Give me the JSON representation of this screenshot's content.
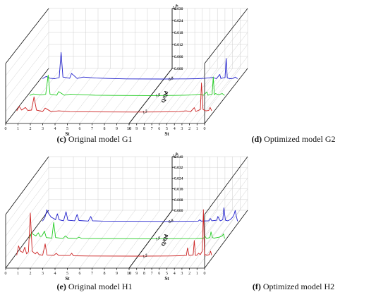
{
  "chart_data": [
    {
      "type": "line",
      "caption_label": "(c)",
      "caption_text": "Original model G1",
      "xlabel": "St",
      "zlabel": "Cp",
      "ylabel": "Q/Q_d",
      "xlim": [
        0,
        10
      ],
      "zlim": [
        0,
        0.03
      ],
      "x_ticks": [
        0,
        1,
        2,
        3,
        4,
        5,
        6,
        7,
        8,
        9,
        10
      ],
      "z_ticks": [
        "0.000",
        "0.006",
        "0.012",
        "0.018",
        "0.024",
        "0.030"
      ],
      "series": [
        {
          "name": "0.8",
          "color": "#2020cc",
          "points": [
            [
              0.2,
              0.0004
            ],
            [
              0.5,
              0.0015
            ],
            [
              0.8,
              0.0006
            ],
            [
              1.2,
              0.0004
            ],
            [
              1.55,
              0.0009
            ],
            [
              1.7,
              0.0135
            ],
            [
              1.85,
              0.0012
            ],
            [
              2.4,
              0.0006
            ],
            [
              2.55,
              0.003
            ],
            [
              3.0,
              0.0005
            ],
            [
              3.5,
              0.0012
            ],
            [
              4.5,
              0.0007
            ],
            [
              5.5,
              0.0005
            ],
            [
              7.0,
              0.0003
            ],
            [
              10.0,
              0.0002
            ]
          ]
        },
        {
          "name": "1.0",
          "color": "#22cc22",
          "points": [
            [
              0.2,
              0.0003
            ],
            [
              0.5,
              0.001
            ],
            [
              1.1,
              0.0005
            ],
            [
              1.5,
              0.0008
            ],
            [
              1.7,
              0.0105
            ],
            [
              1.85,
              0.0009
            ],
            [
              2.4,
              0.0004
            ],
            [
              2.55,
              0.0022
            ],
            [
              3.0,
              0.0004
            ],
            [
              3.5,
              0.0009
            ],
            [
              4.5,
              0.0006
            ],
            [
              5.5,
              0.0004
            ],
            [
              7.0,
              0.0003
            ],
            [
              10.0,
              0.0002
            ]
          ]
        },
        {
          "name": "1.2",
          "color": "#cc2222",
          "points": [
            [
              0.2,
              0.0008
            ],
            [
              0.4,
              0.003
            ],
            [
              0.6,
              0.0012
            ],
            [
              0.9,
              0.0025
            ],
            [
              1.1,
              0.001
            ],
            [
              1.4,
              0.0012
            ],
            [
              1.6,
              0.0078
            ],
            [
              1.8,
              0.0012
            ],
            [
              2.3,
              0.0005
            ],
            [
              2.5,
              0.0022
            ],
            [
              3.0,
              0.0004
            ],
            [
              3.6,
              0.0008
            ],
            [
              4.5,
              0.0004
            ],
            [
              6.0,
              0.0003
            ],
            [
              10.0,
              0.0002
            ]
          ]
        }
      ]
    },
    {
      "type": "line",
      "caption_label": "(d)",
      "caption_text": "Optimized model G2",
      "xlabel": "St",
      "zlabel": "Cp",
      "ylabel": "Q/Q_d",
      "xlim": [
        0,
        10
      ],
      "zlim": [
        0,
        0.03
      ],
      "x_ticks": [
        0,
        1,
        2,
        3,
        4,
        5,
        6,
        7,
        8,
        9,
        10
      ],
      "z_ticks": [
        "0.000",
        "0.006",
        "0.012",
        "0.018",
        "0.024",
        "0.030"
      ],
      "series": [
        {
          "name": "0.8",
          "color": "#2020cc",
          "points": [
            [
              0.2,
              0.0004
            ],
            [
              0.5,
              0.0012
            ],
            [
              0.8,
              0.0005
            ],
            [
              1.2,
              0.0004
            ],
            [
              1.55,
              0.0007
            ],
            [
              1.7,
              0.0105
            ],
            [
              1.85,
              0.001
            ],
            [
              2.4,
              0.0005
            ],
            [
              2.55,
              0.0025
            ],
            [
              3.0,
              0.0004
            ],
            [
              3.5,
              0.001
            ],
            [
              4.5,
              0.0006
            ],
            [
              5.5,
              0.0004
            ],
            [
              7.0,
              0.0003
            ],
            [
              10.0,
              0.0002
            ]
          ]
        },
        {
          "name": "1.0",
          "color": "#22cc22",
          "points": [
            [
              0.2,
              0.0003
            ],
            [
              0.5,
              0.0012
            ],
            [
              1.0,
              0.0006
            ],
            [
              1.4,
              0.0012
            ],
            [
              1.55,
              0.0006
            ],
            [
              1.7,
              0.0095
            ],
            [
              1.85,
              0.0009
            ],
            [
              2.4,
              0.0004
            ],
            [
              2.55,
              0.002
            ],
            [
              3.0,
              0.0004
            ],
            [
              3.5,
              0.0008
            ],
            [
              4.5,
              0.0005
            ],
            [
              5.5,
              0.0004
            ],
            [
              7.0,
              0.0003
            ],
            [
              10.0,
              0.0002
            ]
          ]
        },
        {
          "name": "1.2",
          "color": "#cc2222",
          "points": [
            [
              0.2,
              0.0008
            ],
            [
              0.4,
              0.0025
            ],
            [
              0.6,
              0.001
            ],
            [
              1.0,
              0.0008
            ],
            [
              1.35,
              0.0015
            ],
            [
              1.55,
              0.0148
            ],
            [
              1.7,
              0.0015
            ],
            [
              2.3,
              0.0005
            ],
            [
              2.5,
              0.0024
            ],
            [
              3.0,
              0.0004
            ],
            [
              3.6,
              0.0008
            ],
            [
              4.5,
              0.0004
            ],
            [
              6.0,
              0.0003
            ],
            [
              10.0,
              0.0002
            ]
          ]
        }
      ]
    },
    {
      "type": "line",
      "caption_label": "(e)",
      "caption_text": "Original model H1",
      "xlabel": "St",
      "zlabel": "Cp",
      "ylabel": "Q/Q_d",
      "xlim": [
        0,
        10
      ],
      "zlim": [
        0,
        0.04
      ],
      "x_ticks": [
        0,
        1,
        2,
        3,
        4,
        5,
        6,
        7,
        8,
        9,
        10
      ],
      "z_ticks": [
        "0.000",
        "0.008",
        "0.016",
        "0.024",
        "0.032",
        "0.040"
      ],
      "series": [
        {
          "name": "0.8",
          "color": "#2020cc",
          "points": [
            [
              0.2,
              0.0005
            ],
            [
              0.4,
              0.0035
            ],
            [
              0.55,
              0.009
            ],
            [
              0.7,
              0.006
            ],
            [
              0.9,
              0.0035
            ],
            [
              1.1,
              0.0025
            ],
            [
              1.25,
              0.0015
            ],
            [
              1.4,
              0.006
            ],
            [
              1.55,
              0.0015
            ],
            [
              1.9,
              0.0008
            ],
            [
              2.1,
              0.0075
            ],
            [
              2.25,
              0.0012
            ],
            [
              2.8,
              0.0008
            ],
            [
              3.0,
              0.0055
            ],
            [
              3.15,
              0.001
            ],
            [
              3.9,
              0.0006
            ],
            [
              4.1,
              0.004
            ],
            [
              4.25,
              0.0008
            ],
            [
              5.0,
              0.0006
            ],
            [
              6.0,
              0.0005
            ],
            [
              10.0,
              0.0003
            ]
          ]
        },
        {
          "name": "1.0",
          "color": "#22cc22",
          "points": [
            [
              0.2,
              0.0005
            ],
            [
              0.35,
              0.005
            ],
            [
              0.5,
              0.0035
            ],
            [
              0.7,
              0.0025
            ],
            [
              0.9,
              0.0048
            ],
            [
              1.05,
              0.002
            ],
            [
              1.2,
              0.0025
            ],
            [
              1.4,
              0.006
            ],
            [
              1.55,
              0.0012
            ],
            [
              2.0,
              0.0008
            ],
            [
              2.15,
              0.0125
            ],
            [
              2.3,
              0.0012
            ],
            [
              2.9,
              0.0006
            ],
            [
              3.1,
              0.0025
            ],
            [
              3.3,
              0.0008
            ],
            [
              4.0,
              0.0006
            ],
            [
              4.2,
              0.0015
            ],
            [
              4.4,
              0.0006
            ],
            [
              5.5,
              0.0005
            ],
            [
              10.0,
              0.0003
            ]
          ]
        },
        {
          "name": "1.2",
          "color": "#cc2222",
          "points": [
            [
              0.2,
              0.001
            ],
            [
              0.35,
              0.008
            ],
            [
              0.5,
              0.004
            ],
            [
              0.7,
              0.003
            ],
            [
              0.85,
              0.007
            ],
            [
              1.0,
              0.002
            ],
            [
              1.15,
              0.0035
            ],
            [
              1.3,
              0.0325
            ],
            [
              1.45,
              0.004
            ],
            [
              1.7,
              0.002
            ],
            [
              1.85,
              0.0035
            ],
            [
              2.0,
              0.0015
            ],
            [
              2.3,
              0.001
            ],
            [
              2.5,
              0.0095
            ],
            [
              2.65,
              0.0012
            ],
            [
              3.2,
              0.0008
            ],
            [
              3.4,
              0.0025
            ],
            [
              3.6,
              0.0008
            ],
            [
              4.5,
              0.0008
            ],
            [
              4.65,
              0.0025
            ],
            [
              4.8,
              0.0006
            ],
            [
              6.0,
              0.0004
            ],
            [
              10.0,
              0.0003
            ]
          ]
        }
      ]
    },
    {
      "type": "line",
      "caption_label": "(f)",
      "caption_text": "Optimized model H2",
      "xlabel": "St",
      "zlabel": "Cp",
      "ylabel": "Q/Q_d",
      "xlim": [
        0,
        10
      ],
      "zlim": [
        0,
        0.04
      ],
      "x_ticks": [
        0,
        1,
        2,
        3,
        4,
        5,
        6,
        7,
        8,
        9,
        10
      ],
      "z_ticks": [
        "0.000",
        "0.008",
        "0.016",
        "0.024",
        "0.032",
        "0.040"
      ],
      "series": [
        {
          "name": "0.8",
          "color": "#2020cc",
          "points": [
            [
              0.2,
              0.0005
            ],
            [
              0.35,
              0.004
            ],
            [
              0.5,
              0.0085
            ],
            [
              0.65,
              0.0055
            ],
            [
              0.85,
              0.0035
            ],
            [
              1.0,
              0.0025
            ],
            [
              1.2,
              0.0015
            ],
            [
              1.5,
              0.0008
            ],
            [
              1.8,
              0.0012
            ],
            [
              2.0,
              0.0105
            ],
            [
              2.15,
              0.0015
            ],
            [
              2.5,
              0.0008
            ],
            [
              2.8,
              0.004
            ],
            [
              2.95,
              0.0012
            ],
            [
              3.6,
              0.0008
            ],
            [
              3.8,
              0.0025
            ],
            [
              4.0,
              0.0008
            ],
            [
              5.0,
              0.0006
            ],
            [
              5.2,
              0.0015
            ],
            [
              5.4,
              0.0006
            ],
            [
              7.0,
              0.0004
            ],
            [
              10.0,
              0.0003
            ]
          ]
        },
        {
          "name": "1.0",
          "color": "#22cc22",
          "points": [
            [
              0.2,
              0.0005
            ],
            [
              0.35,
              0.004
            ],
            [
              0.5,
              0.0025
            ],
            [
              0.7,
              0.002
            ],
            [
              0.9,
              0.0015
            ],
            [
              1.2,
              0.0012
            ],
            [
              1.4,
              0.001
            ],
            [
              1.6,
              0.0008
            ],
            [
              1.8,
              0.0012
            ],
            [
              2.0,
              0.0055
            ],
            [
              2.15,
              0.0012
            ],
            [
              2.6,
              0.0006
            ],
            [
              2.8,
              0.0022
            ],
            [
              3.0,
              0.0008
            ],
            [
              4.0,
              0.0005
            ],
            [
              10.0,
              0.0003
            ]
          ]
        },
        {
          "name": "1.2",
          "color": "#cc2222",
          "points": [
            [
              0.2,
              0.001
            ],
            [
              0.35,
              0.004
            ],
            [
              0.5,
              0.0015
            ],
            [
              0.8,
              0.001
            ],
            [
              1.0,
              0.0015
            ],
            [
              1.15,
              0.0008
            ],
            [
              1.3,
              0.035
            ],
            [
              1.45,
              0.004
            ],
            [
              1.7,
              0.0015
            ],
            [
              1.95,
              0.0025
            ],
            [
              2.1,
              0.0012
            ],
            [
              2.35,
              0.0008
            ],
            [
              2.5,
              0.012
            ],
            [
              2.65,
              0.0012
            ],
            [
              3.2,
              0.0008
            ],
            [
              3.4,
              0.0065
            ],
            [
              3.55,
              0.0008
            ],
            [
              4.5,
              0.0006
            ],
            [
              6.0,
              0.0004
            ],
            [
              10.0,
              0.0003
            ]
          ]
        }
      ]
    }
  ]
}
